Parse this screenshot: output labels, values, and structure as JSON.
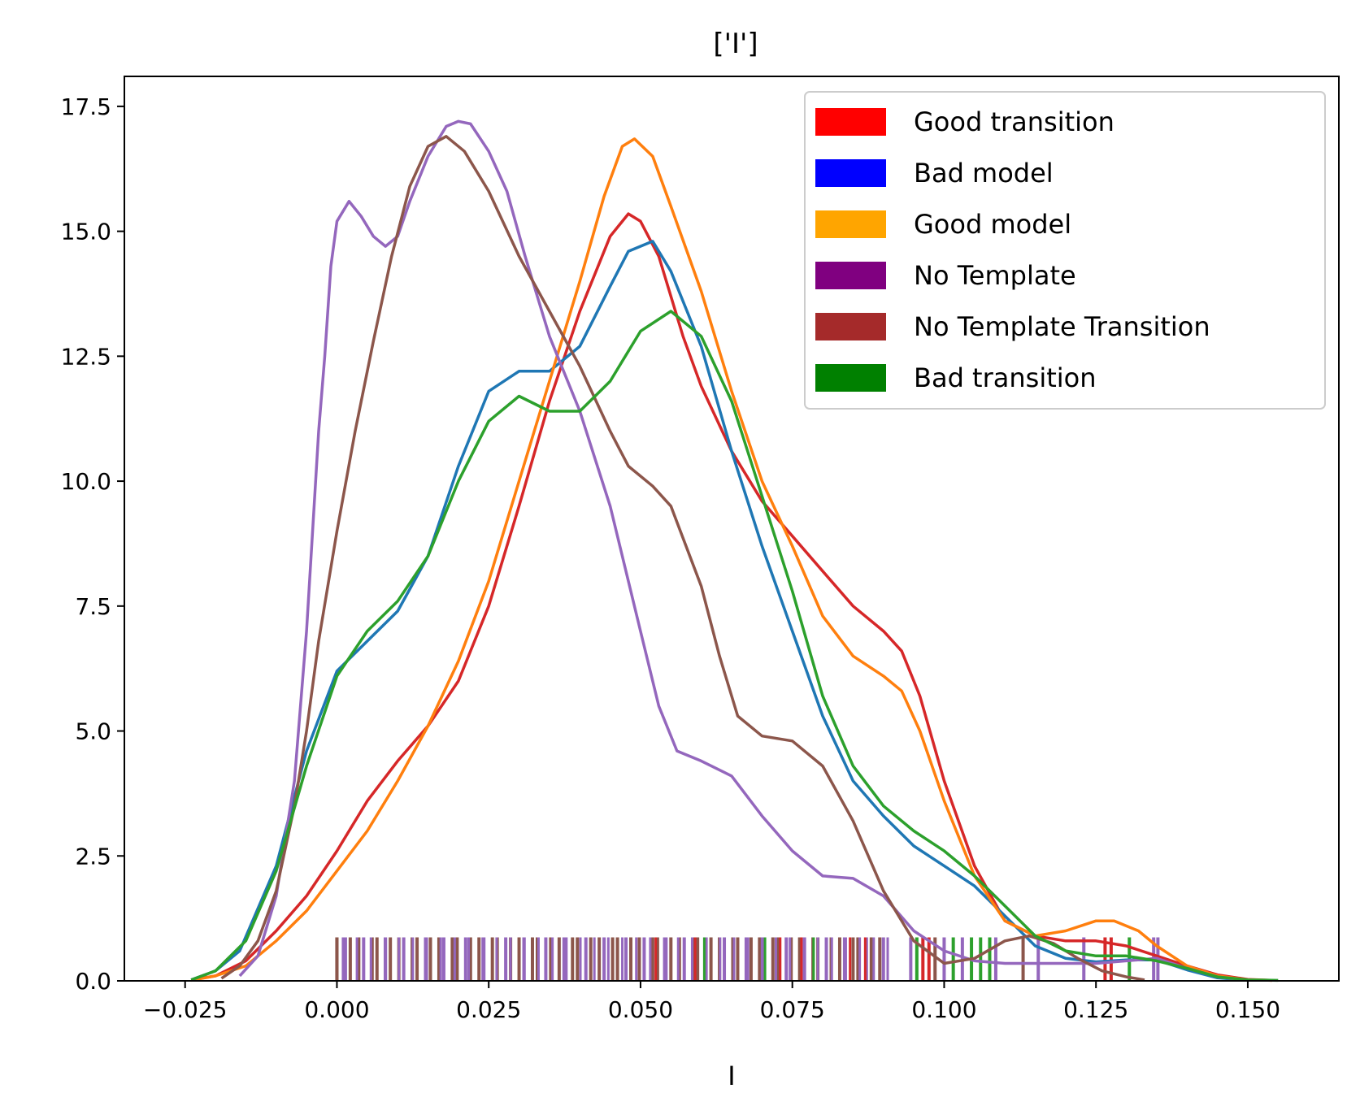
{
  "chart_data": {
    "type": "line",
    "title": "['I']",
    "xlabel": "I",
    "ylabel": "",
    "xlim": [
      -0.035,
      0.165
    ],
    "ylim": [
      0,
      18.1
    ],
    "xticks": [
      -0.025,
      0.0,
      0.025,
      0.05,
      0.075,
      0.1,
      0.125,
      0.15
    ],
    "xtick_labels": [
      "−0.025",
      "0.000",
      "0.025",
      "0.050",
      "0.075",
      "0.100",
      "0.125",
      "0.150"
    ],
    "yticks": [
      0,
      2.5,
      5,
      7.5,
      10,
      12.5,
      15,
      17.5
    ],
    "ytick_labels": [
      "0.0",
      "2.5",
      "5.0",
      "7.5",
      "10.0",
      "12.5",
      "15.0",
      "17.5"
    ],
    "grid": false,
    "legend_position": "upper right",
    "legend": [
      {
        "label": "Good transition",
        "color": "#ff0000"
      },
      {
        "label": "Bad model",
        "color": "#0000ff"
      },
      {
        "label": "Good model",
        "color": "#ffa500"
      },
      {
        "label": "No Template",
        "color": "#800080"
      },
      {
        "label": "No Template Transition",
        "color": "#a52a2a"
      },
      {
        "label": "Bad transition",
        "color": "#008000"
      }
    ],
    "series": [
      {
        "color": "#d62728",
        "points": [
          [
            -0.024,
            0.02
          ],
          [
            -0.02,
            0.1
          ],
          [
            -0.015,
            0.4
          ],
          [
            -0.01,
            1.0
          ],
          [
            -0.005,
            1.7
          ],
          [
            0.0,
            2.6
          ],
          [
            0.005,
            3.6
          ],
          [
            0.01,
            4.4
          ],
          [
            0.015,
            5.1
          ],
          [
            0.02,
            6.0
          ],
          [
            0.025,
            7.5
          ],
          [
            0.03,
            9.5
          ],
          [
            0.035,
            11.6
          ],
          [
            0.04,
            13.4
          ],
          [
            0.045,
            14.9
          ],
          [
            0.048,
            15.35
          ],
          [
            0.05,
            15.2
          ],
          [
            0.053,
            14.5
          ],
          [
            0.057,
            12.9
          ],
          [
            0.06,
            11.9
          ],
          [
            0.065,
            10.6
          ],
          [
            0.07,
            9.6
          ],
          [
            0.075,
            8.9
          ],
          [
            0.08,
            8.2
          ],
          [
            0.085,
            7.5
          ],
          [
            0.09,
            7.0
          ],
          [
            0.093,
            6.6
          ],
          [
            0.096,
            5.7
          ],
          [
            0.1,
            4.0
          ],
          [
            0.105,
            2.3
          ],
          [
            0.11,
            1.2
          ],
          [
            0.115,
            0.9
          ],
          [
            0.12,
            0.8
          ],
          [
            0.125,
            0.8
          ],
          [
            0.13,
            0.7
          ],
          [
            0.135,
            0.5
          ],
          [
            0.14,
            0.3
          ],
          [
            0.145,
            0.12
          ],
          [
            0.15,
            0.03
          ],
          [
            0.154,
            0.01
          ]
        ]
      },
      {
        "color": "#1f77b4",
        "points": [
          [
            -0.024,
            0.02
          ],
          [
            -0.02,
            0.2
          ],
          [
            -0.016,
            0.6
          ],
          [
            -0.01,
            2.3
          ],
          [
            -0.005,
            4.6
          ],
          [
            0.0,
            6.2
          ],
          [
            0.005,
            6.8
          ],
          [
            0.01,
            7.4
          ],
          [
            0.015,
            8.5
          ],
          [
            0.02,
            10.3
          ],
          [
            0.025,
            11.8
          ],
          [
            0.03,
            12.2
          ],
          [
            0.035,
            12.2
          ],
          [
            0.04,
            12.7
          ],
          [
            0.045,
            13.9
          ],
          [
            0.048,
            14.6
          ],
          [
            0.052,
            14.8
          ],
          [
            0.055,
            14.2
          ],
          [
            0.06,
            12.7
          ],
          [
            0.065,
            10.6
          ],
          [
            0.07,
            8.7
          ],
          [
            0.075,
            7.0
          ],
          [
            0.08,
            5.3
          ],
          [
            0.085,
            4.0
          ],
          [
            0.09,
            3.3
          ],
          [
            0.095,
            2.7
          ],
          [
            0.1,
            2.3
          ],
          [
            0.105,
            1.9
          ],
          [
            0.11,
            1.3
          ],
          [
            0.115,
            0.7
          ],
          [
            0.12,
            0.45
          ],
          [
            0.125,
            0.38
          ],
          [
            0.13,
            0.42
          ],
          [
            0.135,
            0.42
          ],
          [
            0.14,
            0.22
          ],
          [
            0.145,
            0.06
          ],
          [
            0.15,
            0.01
          ]
        ]
      },
      {
        "color": "#ff7f0e",
        "points": [
          [
            -0.024,
            0.01
          ],
          [
            -0.02,
            0.1
          ],
          [
            -0.015,
            0.3
          ],
          [
            -0.01,
            0.8
          ],
          [
            -0.005,
            1.4
          ],
          [
            0.0,
            2.2
          ],
          [
            0.005,
            3.0
          ],
          [
            0.01,
            4.0
          ],
          [
            0.015,
            5.1
          ],
          [
            0.02,
            6.4
          ],
          [
            0.025,
            8.0
          ],
          [
            0.03,
            10.0
          ],
          [
            0.035,
            12.0
          ],
          [
            0.04,
            14.0
          ],
          [
            0.044,
            15.7
          ],
          [
            0.047,
            16.7
          ],
          [
            0.049,
            16.85
          ],
          [
            0.052,
            16.5
          ],
          [
            0.055,
            15.5
          ],
          [
            0.06,
            13.8
          ],
          [
            0.065,
            11.8
          ],
          [
            0.07,
            10.0
          ],
          [
            0.075,
            8.7
          ],
          [
            0.08,
            7.3
          ],
          [
            0.085,
            6.5
          ],
          [
            0.09,
            6.1
          ],
          [
            0.093,
            5.8
          ],
          [
            0.096,
            5.0
          ],
          [
            0.1,
            3.6
          ],
          [
            0.105,
            2.1
          ],
          [
            0.11,
            1.2
          ],
          [
            0.115,
            0.9
          ],
          [
            0.12,
            1.0
          ],
          [
            0.125,
            1.2
          ],
          [
            0.128,
            1.2
          ],
          [
            0.132,
            1.0
          ],
          [
            0.135,
            0.7
          ],
          [
            0.14,
            0.3
          ],
          [
            0.145,
            0.1
          ],
          [
            0.15,
            0.02
          ],
          [
            0.154,
            0.01
          ]
        ]
      },
      {
        "color": "#9467bd",
        "points": [
          [
            -0.016,
            0.1
          ],
          [
            -0.013,
            0.5
          ],
          [
            -0.01,
            1.7
          ],
          [
            -0.007,
            4.0
          ],
          [
            -0.005,
            7.0
          ],
          [
            -0.003,
            11.0
          ],
          [
            -0.002,
            12.5
          ],
          [
            -0.001,
            14.3
          ],
          [
            0.0,
            15.2
          ],
          [
            0.002,
            15.6
          ],
          [
            0.004,
            15.3
          ],
          [
            0.006,
            14.9
          ],
          [
            0.008,
            14.7
          ],
          [
            0.01,
            14.9
          ],
          [
            0.012,
            15.6
          ],
          [
            0.015,
            16.5
          ],
          [
            0.018,
            17.1
          ],
          [
            0.02,
            17.2
          ],
          [
            0.022,
            17.15
          ],
          [
            0.025,
            16.6
          ],
          [
            0.028,
            15.8
          ],
          [
            0.031,
            14.5
          ],
          [
            0.035,
            12.9
          ],
          [
            0.04,
            11.4
          ],
          [
            0.045,
            9.5
          ],
          [
            0.05,
            7.0
          ],
          [
            0.053,
            5.5
          ],
          [
            0.056,
            4.6
          ],
          [
            0.06,
            4.4
          ],
          [
            0.065,
            4.1
          ],
          [
            0.07,
            3.3
          ],
          [
            0.075,
            2.6
          ],
          [
            0.08,
            2.1
          ],
          [
            0.085,
            2.05
          ],
          [
            0.09,
            1.7
          ],
          [
            0.095,
            1.0
          ],
          [
            0.1,
            0.6
          ],
          [
            0.105,
            0.4
          ],
          [
            0.11,
            0.35
          ],
          [
            0.115,
            0.35
          ],
          [
            0.12,
            0.35
          ],
          [
            0.125,
            0.35
          ],
          [
            0.13,
            0.4
          ],
          [
            0.135,
            0.45
          ],
          [
            0.14,
            0.25
          ],
          [
            0.145,
            0.08
          ],
          [
            0.15,
            0.01
          ]
        ]
      },
      {
        "color": "#8c564b",
        "points": [
          [
            -0.019,
            0.05
          ],
          [
            -0.016,
            0.3
          ],
          [
            -0.013,
            0.8
          ],
          [
            -0.01,
            1.8
          ],
          [
            -0.007,
            3.5
          ],
          [
            -0.005,
            5.0
          ],
          [
            -0.003,
            6.8
          ],
          [
            0.0,
            9.0
          ],
          [
            0.003,
            11.0
          ],
          [
            0.006,
            12.8
          ],
          [
            0.009,
            14.5
          ],
          [
            0.012,
            15.9
          ],
          [
            0.015,
            16.7
          ],
          [
            0.018,
            16.9
          ],
          [
            0.021,
            16.6
          ],
          [
            0.025,
            15.8
          ],
          [
            0.03,
            14.5
          ],
          [
            0.035,
            13.4
          ],
          [
            0.04,
            12.3
          ],
          [
            0.045,
            11.0
          ],
          [
            0.048,
            10.3
          ],
          [
            0.052,
            9.9
          ],
          [
            0.055,
            9.5
          ],
          [
            0.06,
            7.9
          ],
          [
            0.063,
            6.5
          ],
          [
            0.066,
            5.3
          ],
          [
            0.07,
            4.9
          ],
          [
            0.075,
            4.8
          ],
          [
            0.08,
            4.3
          ],
          [
            0.085,
            3.2
          ],
          [
            0.09,
            1.8
          ],
          [
            0.095,
            0.8
          ],
          [
            0.1,
            0.35
          ],
          [
            0.105,
            0.45
          ],
          [
            0.11,
            0.8
          ],
          [
            0.114,
            0.9
          ],
          [
            0.118,
            0.75
          ],
          [
            0.122,
            0.45
          ],
          [
            0.126,
            0.2
          ],
          [
            0.13,
            0.08
          ],
          [
            0.133,
            0.02
          ]
        ]
      },
      {
        "color": "#2ca02c",
        "points": [
          [
            -0.024,
            0.02
          ],
          [
            -0.02,
            0.2
          ],
          [
            -0.015,
            0.8
          ],
          [
            -0.01,
            2.2
          ],
          [
            -0.005,
            4.3
          ],
          [
            0.0,
            6.1
          ],
          [
            0.005,
            7.0
          ],
          [
            0.01,
            7.6
          ],
          [
            0.015,
            8.5
          ],
          [
            0.02,
            10.0
          ],
          [
            0.025,
            11.2
          ],
          [
            0.03,
            11.7
          ],
          [
            0.035,
            11.4
          ],
          [
            0.04,
            11.4
          ],
          [
            0.045,
            12.0
          ],
          [
            0.05,
            13.0
          ],
          [
            0.055,
            13.4
          ],
          [
            0.06,
            12.9
          ],
          [
            0.065,
            11.6
          ],
          [
            0.07,
            9.7
          ],
          [
            0.075,
            7.8
          ],
          [
            0.08,
            5.7
          ],
          [
            0.085,
            4.3
          ],
          [
            0.09,
            3.5
          ],
          [
            0.095,
            3.0
          ],
          [
            0.1,
            2.6
          ],
          [
            0.105,
            2.1
          ],
          [
            0.11,
            1.5
          ],
          [
            0.115,
            0.9
          ],
          [
            0.12,
            0.6
          ],
          [
            0.125,
            0.5
          ],
          [
            0.13,
            0.5
          ],
          [
            0.135,
            0.4
          ],
          [
            0.14,
            0.25
          ],
          [
            0.145,
            0.08
          ],
          [
            0.15,
            0.02
          ],
          [
            0.155,
            0.01
          ]
        ]
      }
    ],
    "rug": {
      "height": 0.87,
      "colors": {
        "purple": "#9467bd",
        "brown": "#8c564b",
        "red": "#d62728",
        "green": "#2ca02c",
        "blue": "#1f77b4",
        "orange": "#ff7f0e"
      },
      "brown_band": [
        0.0,
        0.09
      ],
      "purple_band": [
        0.001,
        0.092
      ],
      "marks": [
        {
          "x": 0.0,
          "c": "brown"
        },
        {
          "x": 0.09,
          "c": "purple"
        },
        {
          "x": 0.0945,
          "c": "purple"
        },
        {
          "x": 0.0955,
          "c": "green"
        },
        {
          "x": 0.0965,
          "c": "red"
        },
        {
          "x": 0.0975,
          "c": "red"
        },
        {
          "x": 0.0985,
          "c": "brown"
        },
        {
          "x": 0.1,
          "c": "purple"
        },
        {
          "x": 0.1015,
          "c": "green"
        },
        {
          "x": 0.103,
          "c": "purple"
        },
        {
          "x": 0.1045,
          "c": "green"
        },
        {
          "x": 0.106,
          "c": "green"
        },
        {
          "x": 0.1075,
          "c": "green"
        },
        {
          "x": 0.1085,
          "c": "purple"
        },
        {
          "x": 0.113,
          "c": "brown"
        },
        {
          "x": 0.1155,
          "c": "purple"
        },
        {
          "x": 0.123,
          "c": "purple"
        },
        {
          "x": 0.1265,
          "c": "red"
        },
        {
          "x": 0.1275,
          "c": "red"
        },
        {
          "x": 0.1305,
          "c": "green"
        },
        {
          "x": 0.1345,
          "c": "purple"
        },
        {
          "x": 0.1352,
          "c": "purple"
        }
      ]
    }
  }
}
